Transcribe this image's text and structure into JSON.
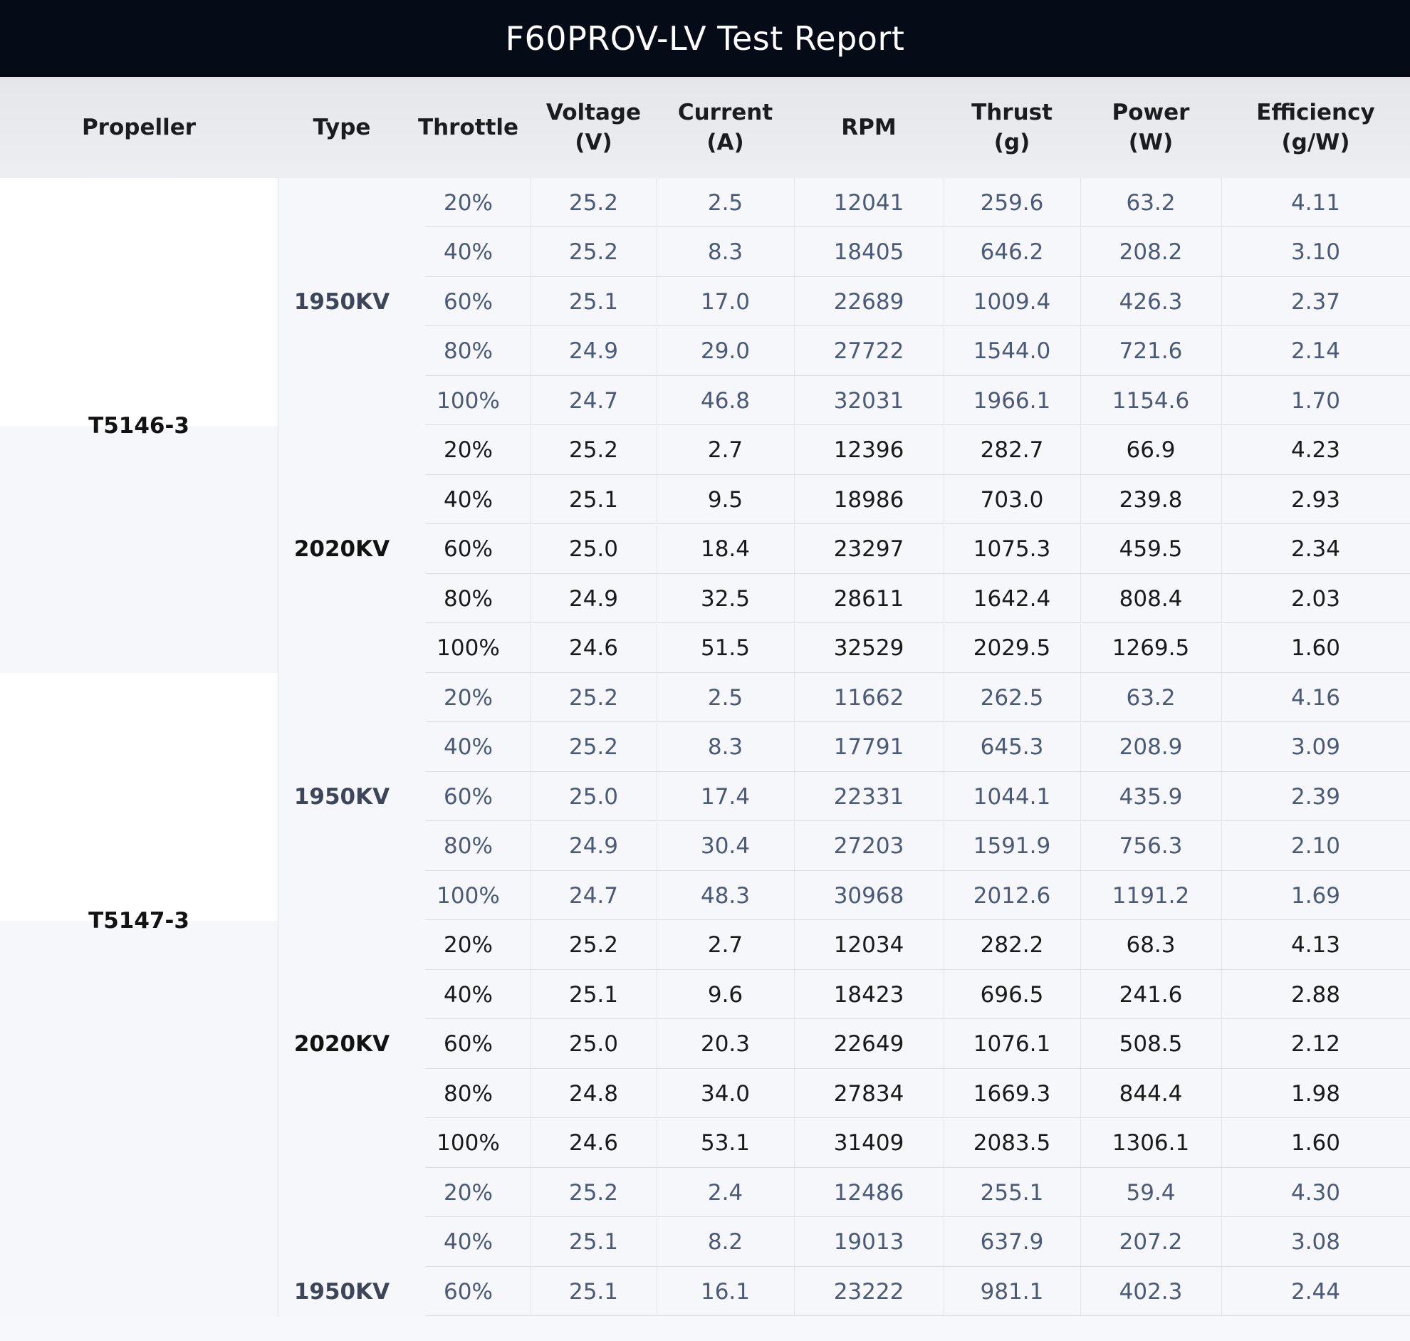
{
  "title": "F60PROV-LV Test Report",
  "headers": [
    "Propeller",
    "Type",
    "Throttle",
    "Voltage\n(V)",
    "Current\n(A)",
    "RPM",
    "Thrust\n(g)",
    "Power\n(W)",
    "Efficiency\n(g/W)"
  ],
  "propellers": [
    {
      "name": "T5146-3",
      "types": [
        {
          "name": "1950KV",
          "rows": [
            [
              "20%",
              "25.2",
              "2.5",
              "12041",
              "259.6",
              "63.2",
              "4.11"
            ],
            [
              "40%",
              "25.2",
              "8.3",
              "18405",
              "646.2",
              "208.2",
              "3.10"
            ],
            [
              "60%",
              "25.1",
              "17.0",
              "22689",
              "1009.4",
              "426.3",
              "2.37"
            ],
            [
              "80%",
              "24.9",
              "29.0",
              "27722",
              "1544.0",
              "721.6",
              "2.14"
            ],
            [
              "100%",
              "24.7",
              "46.8",
              "32031",
              "1966.1",
              "1154.6",
              "1.70"
            ]
          ]
        },
        {
          "name": "2020KV",
          "rows": [
            [
              "20%",
              "25.2",
              "2.7",
              "12396",
              "282.7",
              "66.9",
              "4.23"
            ],
            [
              "40%",
              "25.1",
              "9.5",
              "18986",
              "703.0",
              "239.8",
              "2.93"
            ],
            [
              "60%",
              "25.0",
              "18.4",
              "23297",
              "1075.3",
              "459.5",
              "2.34"
            ],
            [
              "80%",
              "24.9",
              "32.5",
              "28611",
              "1642.4",
              "808.4",
              "2.03"
            ],
            [
              "100%",
              "24.6",
              "51.5",
              "32529",
              "2029.5",
              "1269.5",
              "1.60"
            ]
          ]
        }
      ]
    },
    {
      "name": "T5147-3",
      "types": [
        {
          "name": "1950KV",
          "rows": [
            [
              "20%",
              "25.2",
              "2.5",
              "11662",
              "262.5",
              "63.2",
              "4.16"
            ],
            [
              "40%",
              "25.2",
              "8.3",
              "17791",
              "645.3",
              "208.9",
              "3.09"
            ],
            [
              "60%",
              "25.0",
              "17.4",
              "22331",
              "1044.1",
              "435.9",
              "2.39"
            ],
            [
              "80%",
              "24.9",
              "30.4",
              "27203",
              "1591.9",
              "756.3",
              "2.10"
            ],
            [
              "100%",
              "24.7",
              "48.3",
              "30968",
              "2012.6",
              "1191.2",
              "1.69"
            ]
          ]
        },
        {
          "name": "2020KV",
          "rows": [
            [
              "20%",
              "25.2",
              "2.7",
              "12034",
              "282.2",
              "68.3",
              "4.13"
            ],
            [
              "40%",
              "25.1",
              "9.6",
              "18423",
              "696.5",
              "241.6",
              "2.88"
            ],
            [
              "60%",
              "25.0",
              "20.3",
              "22649",
              "1076.1",
              "508.5",
              "2.12"
            ],
            [
              "80%",
              "24.8",
              "34.0",
              "27834",
              "1669.3",
              "844.4",
              "1.98"
            ],
            [
              "100%",
              "24.6",
              "53.1",
              "31409",
              "2083.5",
              "1306.1",
              "1.60"
            ]
          ]
        }
      ]
    },
    {
      "name": "",
      "types": [
        {
          "name": "1950KV",
          "rows": [
            [
              "20%",
              "25.2",
              "2.4",
              "12486",
              "255.1",
              "59.4",
              "4.30"
            ],
            [
              "40%",
              "25.1",
              "8.2",
              "19013",
              "637.9",
              "207.2",
              "3.08"
            ],
            [
              "60%",
              "25.1",
              "16.1",
              "23222",
              "981.1",
              "402.3",
              "2.44"
            ]
          ]
        }
      ]
    }
  ]
}
